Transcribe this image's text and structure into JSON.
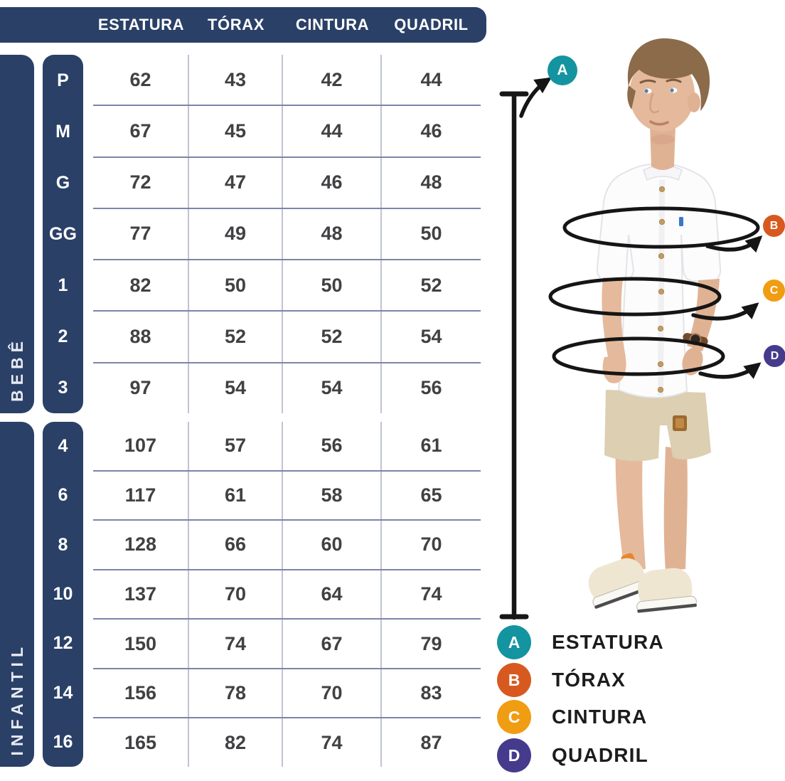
{
  "header": {
    "columns": [
      "ESTATURA",
      "TÓRAX",
      "CINTURA",
      "QUADRIL"
    ]
  },
  "chart_data": {
    "type": "table",
    "columns": [
      "ESTATURA",
      "TÓRAX",
      "CINTURA",
      "QUADRIL"
    ],
    "row_groups": [
      {
        "group": "BEBÊ",
        "rows": [
          {
            "size": "P",
            "values": [
              62,
              43,
              42,
              44
            ]
          },
          {
            "size": "M",
            "values": [
              67,
              45,
              44,
              46
            ]
          },
          {
            "size": "G",
            "values": [
              72,
              47,
              46,
              48
            ]
          },
          {
            "size": "GG",
            "values": [
              77,
              49,
              48,
              50
            ]
          },
          {
            "size": "1",
            "values": [
              82,
              50,
              50,
              52
            ]
          },
          {
            "size": "2",
            "values": [
              88,
              52,
              52,
              54
            ]
          },
          {
            "size": "3",
            "values": [
              97,
              54,
              54,
              56
            ]
          }
        ]
      },
      {
        "group": "INFANTIL",
        "rows": [
          {
            "size": "4",
            "values": [
              107,
              57,
              56,
              61
            ]
          },
          {
            "size": "6",
            "values": [
              117,
              61,
              58,
              65
            ]
          },
          {
            "size": "8",
            "values": [
              128,
              66,
              60,
              70
            ]
          },
          {
            "size": "10",
            "values": [
              137,
              70,
              64,
              74
            ]
          },
          {
            "size": "12",
            "values": [
              150,
              74,
              67,
              79
            ]
          },
          {
            "size": "14",
            "values": [
              156,
              78,
              70,
              83
            ]
          },
          {
            "size": "16",
            "values": [
              165,
              82,
              74,
              87
            ]
          }
        ]
      }
    ]
  },
  "figure": {
    "markers": [
      {
        "letter": "A",
        "color": "#1494a0"
      },
      {
        "letter": "B",
        "color": "#d8591f"
      },
      {
        "letter": "C",
        "color": "#f09d13"
      },
      {
        "letter": "D",
        "color": "#453b8d"
      }
    ]
  },
  "legend": {
    "items": [
      {
        "letter": "A",
        "label": "ESTATURA",
        "color": "#1494a0"
      },
      {
        "letter": "B",
        "label": "TÓRAX",
        "color": "#d8591f"
      },
      {
        "letter": "C",
        "label": "CINTURA",
        "color": "#f09d13"
      },
      {
        "letter": "D",
        "label": "QUADRIL",
        "color": "#453b8d"
      }
    ]
  },
  "colors": {
    "navy": "#2a4067",
    "row_line": "#7d84a8",
    "col_line": "#c0c3d4",
    "cell_text": "#414144"
  }
}
